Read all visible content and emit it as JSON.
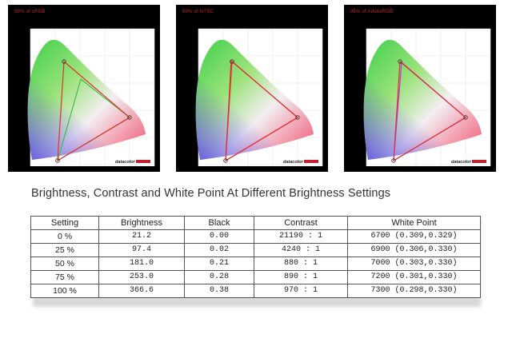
{
  "panels": [
    {
      "caption": "99% of sRGB",
      "brand": "datacolor",
      "triangle_color": "#3fbf3f"
    },
    {
      "caption": "90% of NTSC",
      "brand": "datacolor",
      "triangle_color": "#e03030"
    },
    {
      "caption": "95% of AdobeRGB",
      "brand": "datacolor",
      "triangle_color": "#b23bd6"
    }
  ],
  "heading": "Brightness, Contrast and White Point At Different Brightness Settings",
  "table": {
    "headers": [
      "Setting",
      "Brightness",
      "Black",
      "Contrast",
      "White Point"
    ],
    "rows": [
      [
        "0 %",
        "21.2",
        "0.00",
        "21190 : 1",
        "6700 (0.309,0.329)"
      ],
      [
        "25 %",
        "97.4",
        "0.02",
        "4240 : 1",
        "6900 (0.306,0.330)"
      ],
      [
        "50 %",
        "181.0",
        "0.21",
        "880 : 1",
        "7000 (0.303,0.330)"
      ],
      [
        "75 %",
        "253.0",
        "0.28",
        "890 : 1",
        "7200 (0.301,0.330)"
      ],
      [
        "100 %",
        "366.6",
        "0.38",
        "970 : 1",
        "7300 (0.298,0.330)"
      ]
    ]
  },
  "colors": {
    "panel_bg": "#000000",
    "caption": "#c2202a",
    "measured_triangle": "#e03030"
  }
}
